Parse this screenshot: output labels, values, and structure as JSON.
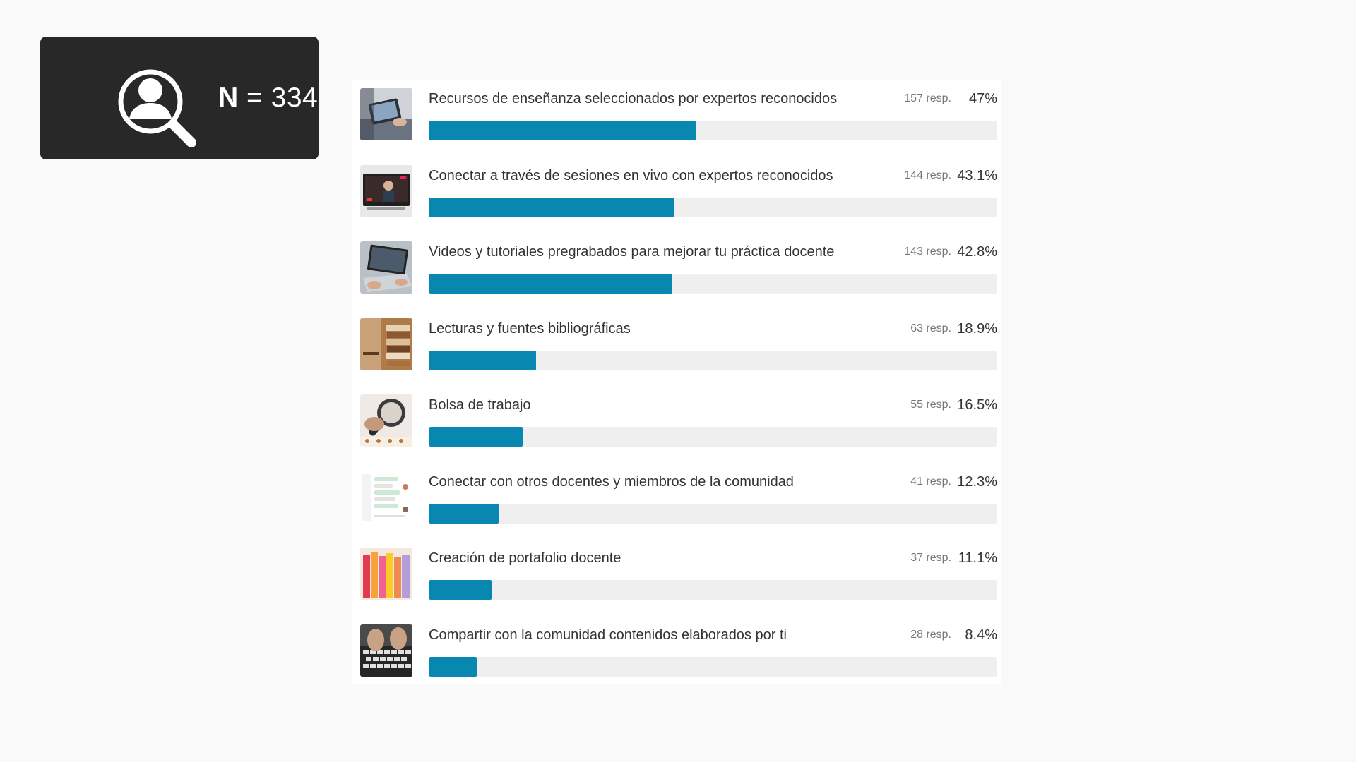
{
  "badge": {
    "icon": "user-search-icon",
    "n_prefix": "N",
    "n_value": "= 334"
  },
  "colors": {
    "bar": "#0887b0",
    "track": "#efefef",
    "badge_bg": "#282828",
    "page_bg": "#f9f9f9"
  },
  "chart_data": {
    "type": "bar",
    "orientation": "horizontal",
    "xlim": [
      0,
      100
    ],
    "categories": [
      "Recursos de enseñanza seleccionados por expertos reconocidos",
      "Conectar a través de sesiones en vivo con expertos reconocidos",
      "Videos y tutoriales pregrabados para mejorar tu práctica docente",
      "Lecturas y fuentes bibliográficas",
      "Bolsa de trabajo",
      "Conectar con otros docentes y miembros de la comunidad",
      "Creación de portafolio docente",
      "Compartir con la comunidad contenidos elaborados por ti"
    ],
    "values": [
      47,
      43.1,
      42.8,
      18.9,
      16.5,
      12.3,
      11.1,
      8.4
    ],
    "responses": [
      157,
      144,
      143,
      63,
      55,
      41,
      37,
      28
    ],
    "value_labels": [
      "47%",
      "43.1%",
      "42.8%",
      "18.9%",
      "16.5%",
      "12.3%",
      "11.1%",
      "8.4%"
    ],
    "response_labels": [
      "157 resp.",
      "144 resp.",
      "143 resp.",
      "63 resp.",
      "55 resp.",
      "41 resp.",
      "37 resp.",
      "28 resp."
    ],
    "thumbnails": [
      "tablet-photo",
      "video-call-photo",
      "laptop-photo",
      "books-photo",
      "magnifier-photo",
      "chat-screenshot",
      "folders-photo",
      "keyboard-photo"
    ]
  }
}
